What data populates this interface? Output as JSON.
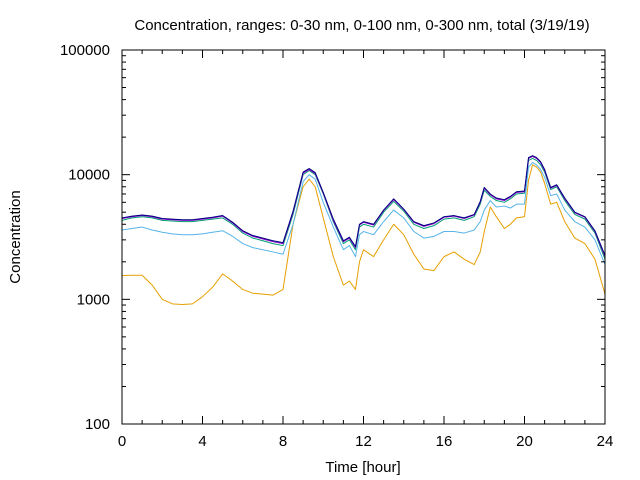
{
  "chart_data": {
    "type": "line",
    "title": "Concentration, ranges: 0-30 nm, 0-100 nm, 0-300 nm, total (3/19/19)",
    "xlabel": "Time [hour]",
    "ylabel": "Concentration",
    "xlim": [
      0,
      24
    ],
    "ylim": [
      100,
      100000
    ],
    "yscale": "log",
    "grid": false,
    "x_ticks": [
      0,
      4,
      8,
      12,
      16,
      20,
      24
    ],
    "x_tick_labels": [
      "0",
      "4",
      "8",
      "12",
      "16",
      "20",
      "24"
    ],
    "y_ticks": [
      100,
      1000,
      10000,
      100000
    ],
    "y_tick_labels": [
      "100",
      "1000",
      "10000",
      "100000"
    ],
    "colors": [
      "#e69f00",
      "#56b4e9",
      "#009e73",
      "#9400d3",
      "#000080"
    ],
    "x": [
      0,
      0.5,
      1,
      1.5,
      2,
      2.5,
      3,
      3.5,
      4,
      4.5,
      5,
      5.5,
      6,
      6.5,
      7,
      7.5,
      8,
      8.5,
      9,
      9.3,
      9.6,
      10,
      10.5,
      11,
      11.3,
      11.6,
      11.8,
      12,
      12.5,
      13,
      13.5,
      14,
      14.5,
      15,
      15.5,
      16,
      16.5,
      17,
      17.5,
      17.8,
      18,
      18.3,
      18.6,
      19,
      19.3,
      19.6,
      20,
      20.2,
      20.4,
      20.6,
      20.8,
      21,
      21.3,
      21.6,
      22,
      22.5,
      23,
      23.5,
      24
    ],
    "series": [
      {
        "values": [
          1550,
          1560,
          1560,
          1300,
          1000,
          920,
          910,
          920,
          1050,
          1250,
          1600,
          1400,
          1200,
          1120,
          1100,
          1080,
          1200,
          4000,
          8000,
          9200,
          8000,
          4500,
          2200,
          1300,
          1400,
          1200,
          2000,
          2500,
          2200,
          3000,
          4000,
          3300,
          2300,
          1750,
          1700,
          2200,
          2400,
          2100,
          1900,
          2400,
          3500,
          5500,
          4600,
          3700,
          4000,
          4500,
          4600,
          9000,
          12000,
          11500,
          10500,
          8500,
          5800,
          6000,
          4200,
          3100,
          2800,
          2100,
          1100
        ]
      },
      {
        "values": [
          3600,
          3700,
          3800,
          3600,
          3450,
          3350,
          3300,
          3300,
          3350,
          3450,
          3550,
          3200,
          2800,
          2600,
          2500,
          2400,
          2300,
          4000,
          8800,
          10000,
          9200,
          6000,
          3800,
          2500,
          2700,
          2200,
          3300,
          3500,
          3300,
          4200,
          5200,
          4500,
          3500,
          3100,
          3200,
          3500,
          3500,
          3400,
          3600,
          4200,
          5200,
          6200,
          5500,
          5600,
          5400,
          5800,
          5800,
          11500,
          12500,
          12000,
          11000,
          9500,
          6800,
          7000,
          5200,
          4200,
          3800,
          3000,
          1900
        ]
      },
      {
        "values": [
          4300,
          4500,
          4600,
          4500,
          4300,
          4250,
          4200,
          4200,
          4300,
          4400,
          4500,
          4000,
          3400,
          3100,
          2950,
          2800,
          2700,
          4800,
          10000,
          10800,
          10000,
          7000,
          4200,
          2800,
          3000,
          2500,
          3800,
          4000,
          3800,
          5000,
          6100,
          5100,
          4000,
          3700,
          3900,
          4400,
          4500,
          4300,
          4600,
          5800,
          7500,
          6700,
          6200,
          6000,
          6400,
          7000,
          7100,
          13000,
          13500,
          13000,
          12000,
          10500,
          7600,
          8000,
          6200,
          4800,
          4400,
          3400,
          2100
        ]
      },
      {
        "values": [
          4450,
          4600,
          4700,
          4600,
          4400,
          4350,
          4300,
          4300,
          4400,
          4500,
          4650,
          4100,
          3500,
          3200,
          3050,
          2900,
          2800,
          5000,
          10300,
          11000,
          10200,
          7100,
          4300,
          2900,
          3100,
          2600,
          3950,
          4150,
          3950,
          5150,
          6300,
          5250,
          4150,
          3850,
          4050,
          4550,
          4650,
          4450,
          4750,
          6000,
          7800,
          6900,
          6400,
          6200,
          6600,
          7200,
          7300,
          13500,
          14000,
          13500,
          12500,
          10800,
          7800,
          8200,
          6400,
          4950,
          4550,
          3500,
          2200
        ]
      },
      {
        "values": [
          4500,
          4650,
          4750,
          4650,
          4450,
          4400,
          4350,
          4350,
          4450,
          4550,
          4700,
          4150,
          3550,
          3250,
          3100,
          2950,
          2850,
          5100,
          10500,
          11200,
          10400,
          7200,
          4400,
          2950,
          3150,
          2650,
          4000,
          4200,
          4000,
          5200,
          6400,
          5300,
          4200,
          3900,
          4100,
          4600,
          4700,
          4500,
          4800,
          6100,
          7900,
          7000,
          6500,
          6300,
          6700,
          7300,
          7400,
          13700,
          14200,
          13700,
          12700,
          11000,
          7900,
          8300,
          6500,
          5000,
          4600,
          3550,
          2250
        ]
      }
    ]
  }
}
